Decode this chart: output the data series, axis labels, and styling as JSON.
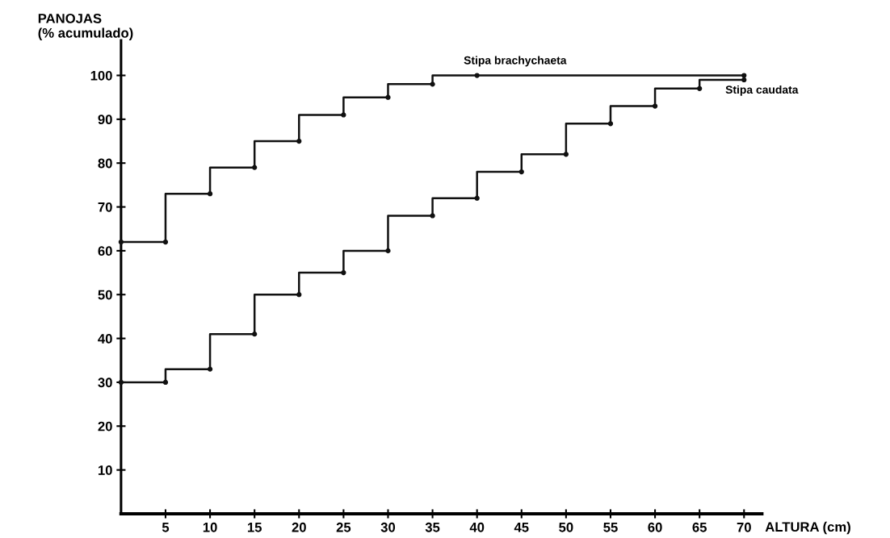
{
  "chart_data": {
    "type": "step",
    "xlabel": "ALTURA (cm)",
    "ylabel": "PANOJAS\n(% acumulado)",
    "series": [
      {
        "name": "Stipa brachychaeta",
        "color": "#111111",
        "x": [
          0,
          5,
          10,
          15,
          20,
          25,
          30,
          35,
          40,
          70
        ],
        "values": [
          62,
          62,
          73,
          79,
          85,
          91,
          95,
          98,
          100,
          100
        ]
      },
      {
        "name": "Stipa caudata",
        "color": "#111111",
        "x": [
          0,
          5,
          10,
          15,
          20,
          25,
          30,
          35,
          40,
          45,
          50,
          55,
          60,
          65,
          70
        ],
        "values": [
          30,
          30,
          33,
          41,
          50,
          55,
          60,
          68,
          72,
          78,
          82,
          89,
          93,
          97,
          99
        ]
      }
    ],
    "xlim": [
      0,
      72
    ],
    "xticks": [
      5,
      10,
      15,
      20,
      25,
      30,
      35,
      40,
      45,
      50,
      55,
      60,
      65,
      70
    ],
    "ylim": [
      0,
      108
    ],
    "yticks": [
      10,
      20,
      30,
      40,
      50,
      60,
      70,
      80,
      90,
      100
    ],
    "marker": "circle",
    "line_style": "solid",
    "grid": false,
    "legend": false
  }
}
